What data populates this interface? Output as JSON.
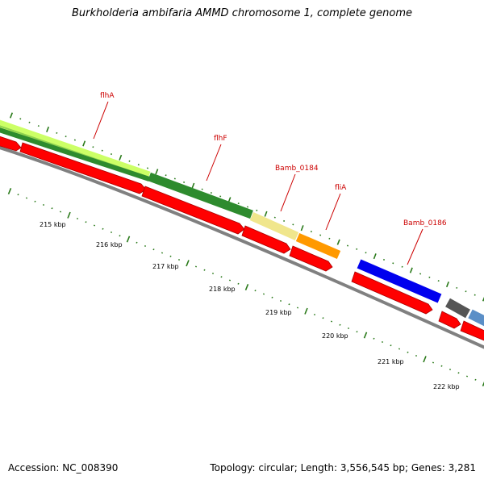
{
  "title": "Burkholderia ambifaria AMMD chromosome 1, complete genome",
  "accession": "Accession: NC_008390",
  "summary": "Topology: circular; Length: 3,556,545 bp; Genes: 3,281",
  "colors": {
    "cds": "#ff0000",
    "backbone": "#808080",
    "ticks": "#2a7a1a",
    "label": "#cc0000"
  },
  "scale_labels": [
    "215 kbp",
    "216 kbp",
    "217 kbp",
    "218 kbp",
    "219 kbp",
    "220 kbp",
    "221 kbp",
    "222 kbp"
  ],
  "gene_labels": [
    "flhA",
    "flhF",
    "Bamb_0184",
    "fliA",
    "Bamb_0186"
  ],
  "cog_bands": [
    {
      "color": "#ccff66"
    },
    {
      "color": "#2e8b2e"
    },
    {
      "color": "#f0e68c"
    },
    {
      "color": "#ff9900"
    },
    {
      "color": "#0000ee"
    },
    {
      "color": "#555555"
    },
    {
      "color": "#5b8fc7"
    }
  ]
}
